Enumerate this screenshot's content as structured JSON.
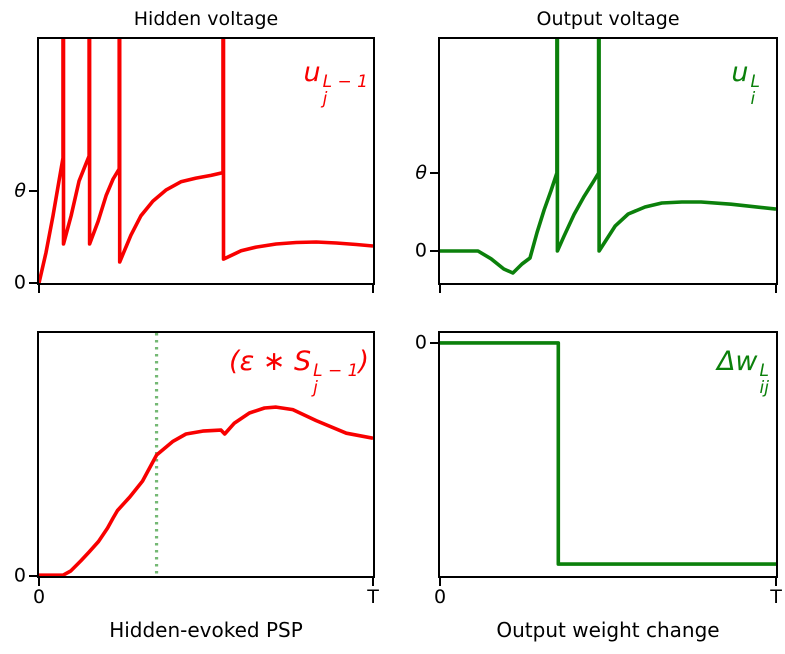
{
  "figure": {
    "background": "#ffffff",
    "axis_color": "#000000",
    "hidden_color": "#f80000",
    "output_color": "#0b800b",
    "spike_marker_color": "#74b874"
  },
  "chart_data": [
    {
      "id": "hidden-voltage",
      "type": "line",
      "title": "Hidden voltage",
      "color": "#f80000",
      "trace_label": {
        "pre": "u",
        "sup": "L − 1",
        "sub": "j"
      },
      "ylim": [
        0,
        2.652
      ],
      "y_ticks": [
        {
          "label": "θ",
          "value": 1,
          "italic": true
        },
        {
          "label": "0",
          "value": 0
        }
      ],
      "x_ticks": [
        {
          "pos": 0
        },
        {
          "pos": 1
        }
      ],
      "points": [
        [
          0,
          0
        ],
        [
          0.021,
          0.33
        ],
        [
          0.042,
          0.73
        ],
        [
          0.06,
          1.11
        ],
        [
          0.072,
          1.36
        ],
        [
          0.072,
          3
        ],
        [
          0.0735,
          3
        ],
        [
          0.0735,
          0.424
        ],
        [
          0.096,
          0.73
        ],
        [
          0.12,
          1.11
        ],
        [
          0.141,
          1.3
        ],
        [
          0.15,
          1.38
        ],
        [
          0.15,
          3
        ],
        [
          0.1515,
          3
        ],
        [
          0.1515,
          0.424
        ],
        [
          0.177,
          0.67
        ],
        [
          0.201,
          0.95
        ],
        [
          0.222,
          1.13
        ],
        [
          0.24,
          1.24
        ],
        [
          0.24,
          3
        ],
        [
          0.2415,
          3
        ],
        [
          0.2415,
          0.228
        ],
        [
          0.275,
          0.52
        ],
        [
          0.305,
          0.73
        ],
        [
          0.341,
          0.89
        ],
        [
          0.38,
          1.01
        ],
        [
          0.425,
          1.1
        ],
        [
          0.47,
          1.14
        ],
        [
          0.515,
          1.17
        ],
        [
          0.551,
          1.2
        ],
        [
          0.551,
          3
        ],
        [
          0.5525,
          3
        ],
        [
          0.5525,
          0.26
        ],
        [
          0.605,
          0.35
        ],
        [
          0.65,
          0.39
        ],
        [
          0.71,
          0.424
        ],
        [
          0.77,
          0.44
        ],
        [
          0.83,
          0.446
        ],
        [
          0.89,
          0.435
        ],
        [
          0.95,
          0.418
        ],
        [
          1,
          0.402
        ]
      ]
    },
    {
      "id": "output-voltage",
      "type": "line",
      "title": "Output voltage",
      "color": "#0b800b",
      "trace_label": {
        "pre": "u",
        "sup": "L",
        "sub": "i"
      },
      "ylim": [
        -0.41,
        2.718
      ],
      "y_ticks": [
        {
          "label": "θ",
          "value": 1,
          "italic": true
        },
        {
          "label": "0",
          "value": 0
        }
      ],
      "x_ticks": [
        {
          "pos": 0
        },
        {
          "pos": 1
        }
      ],
      "points": [
        [
          0,
          0
        ],
        [
          0.113,
          0
        ],
        [
          0.152,
          -0.1
        ],
        [
          0.19,
          -0.23
        ],
        [
          0.217,
          -0.282
        ],
        [
          0.244,
          -0.167
        ],
        [
          0.268,
          -0.09
        ],
        [
          0.289,
          0.24
        ],
        [
          0.31,
          0.53
        ],
        [
          0.33,
          0.77
        ],
        [
          0.348,
          1
        ],
        [
          0.348,
          3
        ],
        [
          0.3495,
          3
        ],
        [
          0.3495,
          0
        ],
        [
          0.369,
          0.19
        ],
        [
          0.399,
          0.47
        ],
        [
          0.429,
          0.7
        ],
        [
          0.458,
          0.9
        ],
        [
          0.472,
          1
        ],
        [
          0.472,
          3
        ],
        [
          0.4735,
          3
        ],
        [
          0.4735,
          0
        ],
        [
          0.521,
          0.32
        ],
        [
          0.56,
          0.474
        ],
        [
          0.61,
          0.564
        ],
        [
          0.66,
          0.615
        ],
        [
          0.72,
          0.628
        ],
        [
          0.777,
          0.628
        ],
        [
          0.866,
          0.6
        ],
        [
          1,
          0.538
        ]
      ]
    },
    {
      "id": "hidden-evoked-psp",
      "type": "line",
      "xlabel": "Hidden-evoked PSP",
      "color": "#f80000",
      "trace_label": {
        "pre": "(ε ∗ S",
        "sup": "L − 1",
        "sub": "j",
        "post": ")"
      },
      "ylim": [
        0,
        1.446
      ],
      "y_ticks": [
        {
          "label": "0",
          "value": 0
        }
      ],
      "x_ticks": [
        {
          "pos": 0,
          "label": "0"
        },
        {
          "pos": 1,
          "label": "T"
        }
      ],
      "vline": {
        "x": 0.352,
        "color": "#74b874",
        "style": "dotted"
      },
      "points": [
        [
          0,
          0.005
        ],
        [
          0.072,
          0.005
        ],
        [
          0.095,
          0.03
        ],
        [
          0.125,
          0.09
        ],
        [
          0.15,
          0.143
        ],
        [
          0.178,
          0.205
        ],
        [
          0.205,
          0.285
        ],
        [
          0.222,
          0.345
        ],
        [
          0.235,
          0.39
        ],
        [
          0.272,
          0.47
        ],
        [
          0.31,
          0.565
        ],
        [
          0.352,
          0.72
        ],
        [
          0.4,
          0.8
        ],
        [
          0.44,
          0.845
        ],
        [
          0.49,
          0.862
        ],
        [
          0.545,
          0.868
        ],
        [
          0.556,
          0.845
        ],
        [
          0.585,
          0.91
        ],
        [
          0.63,
          0.97
        ],
        [
          0.675,
          1
        ],
        [
          0.71,
          1.005
        ],
        [
          0.76,
          0.99
        ],
        [
          0.83,
          0.925
        ],
        [
          0.92,
          0.85
        ],
        [
          1,
          0.82
        ]
      ]
    },
    {
      "id": "output-weight-change",
      "type": "line",
      "xlabel": "Output weight change",
      "color": "#0b800b",
      "trace_label": {
        "pre": "Δw",
        "sup": "L",
        "sub": "ij"
      },
      "ylim": [
        -1.054,
        0.045
      ],
      "y_ticks": [
        {
          "label": "0",
          "value": 0
        }
      ],
      "x_ticks": [
        {
          "pos": 0,
          "label": "0"
        },
        {
          "pos": 1,
          "label": "T"
        }
      ],
      "points": [
        [
          0,
          0
        ],
        [
          0.352,
          0
        ],
        [
          0.352,
          -1
        ],
        [
          1,
          -1
        ]
      ]
    }
  ]
}
